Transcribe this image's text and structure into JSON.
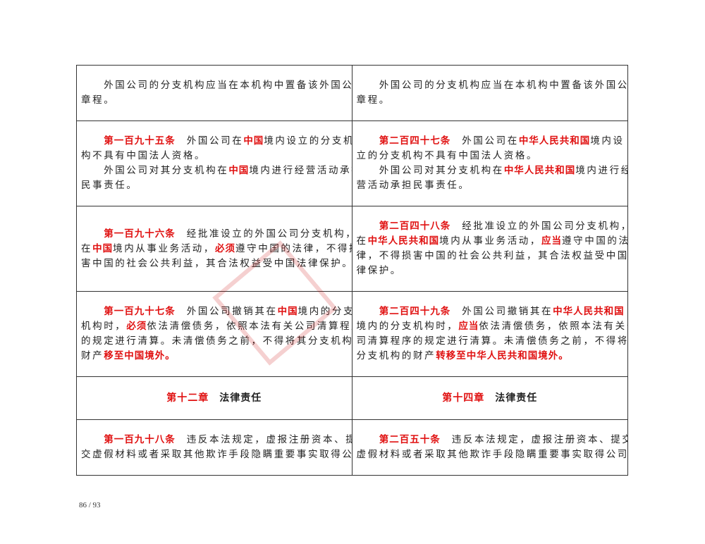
{
  "rows": [
    {
      "h": 78,
      "cells": [
        {
          "lines": [
            [
              {
                "t": "　　外国公司的分支机构应当在本机构中置备该外国公司"
              }
            ],
            [
              {
                "t": "章程。"
              }
            ]
          ]
        },
        {
          "lines": [
            [
              {
                "t": "　　外国公司的分支机构应当在本机构中置备该外国公司"
              }
            ],
            [
              {
                "t": "章程。"
              }
            ]
          ]
        }
      ]
    },
    {
      "h": 120,
      "cells": [
        {
          "lines": [
            [
              {
                "t": "　　"
              },
              {
                "t": "第一百九十五条",
                "r": true
              },
              {
                "t": "　外国公司在"
              },
              {
                "t": "中国",
                "r": true
              },
              {
                "t": "境内设立的分支机"
              }
            ],
            [
              {
                "t": "构不具有中国法人资格。"
              }
            ],
            [
              {
                "t": "　　外国公司对其分支机构在"
              },
              {
                "t": "中国",
                "r": true
              },
              {
                "t": "境内进行经营活动承担"
              }
            ],
            [
              {
                "t": "民事责任。"
              }
            ]
          ]
        },
        {
          "lines": [
            [
              {
                "t": "　　"
              },
              {
                "t": "第二百四十七条",
                "r": true
              },
              {
                "t": "　外国公司在"
              },
              {
                "t": "中华人民共和国",
                "r": true
              },
              {
                "t": "境内设"
              }
            ],
            [
              {
                "t": "立的分支机构不具有中国法人资格。"
              }
            ],
            [
              {
                "t": "　　外国公司对其分支机构在"
              },
              {
                "t": "中华人民共和国",
                "r": true
              },
              {
                "t": "境内进行经"
              }
            ],
            [
              {
                "t": "营活动承担民事责任。"
              }
            ]
          ]
        }
      ]
    },
    {
      "h": 120,
      "cells": [
        {
          "lines": [
            [
              {
                "t": "　　"
              },
              {
                "t": "第一百九十六条",
                "r": true
              },
              {
                "t": "　经批准设立的外国公司分支机构，"
              }
            ],
            [
              {
                "t": "在"
              },
              {
                "t": "中国",
                "r": true
              },
              {
                "t": "境内从事业务活动，"
              },
              {
                "t": "必须",
                "r": true
              },
              {
                "t": "遵守中国的法律，不得损"
              }
            ],
            [
              {
                "t": "害中国的社会公共利益，其合法权益受中国法律保护。"
              }
            ]
          ]
        },
        {
          "lines": [
            [
              {
                "t": "　　"
              },
              {
                "t": "第二百四十八条",
                "r": true
              },
              {
                "t": "　经批准设立的外国公司分支机构，"
              }
            ],
            [
              {
                "t": "在"
              },
              {
                "t": "中华人民共和国",
                "r": true
              },
              {
                "t": "境内从事业务活动，"
              },
              {
                "t": "应当",
                "r": true
              },
              {
                "t": "遵守中国的法"
              }
            ],
            [
              {
                "t": "律，不得损害中国的社会公共利益，其合法权益受中国法"
              }
            ],
            [
              {
                "t": "律保护。"
              }
            ]
          ]
        }
      ]
    },
    {
      "h": 120,
      "cells": [
        {
          "lines": [
            [
              {
                "t": "　　"
              },
              {
                "t": "第一百九十七条",
                "r": true
              },
              {
                "t": "　外国公司撤销其在"
              },
              {
                "t": "中国",
                "r": true
              },
              {
                "t": "境内的分支"
              }
            ],
            [
              {
                "t": "机构时，"
              },
              {
                "t": "必须",
                "r": true
              },
              {
                "t": "依法清偿债务，依照本法有关公司清算程序"
              }
            ],
            [
              {
                "t": "的规定进行清算。未清偿债务之前，不得将其分支机构的"
              }
            ],
            [
              {
                "t": "财产"
              },
              {
                "t": "移至中国境外。",
                "r": true
              }
            ]
          ]
        },
        {
          "lines": [
            [
              {
                "t": "　　"
              },
              {
                "t": "第二百四十九条",
                "r": true
              },
              {
                "t": "　外国公司撤销其在"
              },
              {
                "t": "中华人民共和国",
                "r": true
              }
            ],
            [
              {
                "t": "境内的分支机构时，"
              },
              {
                "t": "应当",
                "r": true
              },
              {
                "t": "依法清偿债务，依照本法有关公"
              }
            ],
            [
              {
                "t": "司清算程序的规定进行清算。未清偿债务之前，不得将其"
              }
            ],
            [
              {
                "t": "分支机构的财产"
              },
              {
                "t": "转移至中华人民共和国境外。",
                "r": true
              }
            ]
          ]
        }
      ]
    },
    {
      "h": 60,
      "heading": true,
      "cells": [
        {
          "lines": [
            [
              {
                "t": "第十二章",
                "r": true
              },
              {
                "t": "　法律责任"
              }
            ]
          ]
        },
        {
          "lines": [
            [
              {
                "t": "第十四章",
                "r": true
              },
              {
                "t": "　法律责任"
              }
            ]
          ]
        }
      ]
    },
    {
      "h": 78,
      "cells": [
        {
          "lines": [
            [
              {
                "t": "　　"
              },
              {
                "t": "第一百九十八条",
                "r": true
              },
              {
                "t": "　违反本法规定，虚报注册资本、提"
              }
            ],
            [
              {
                "t": "交虚假材料或者采取其他欺诈手段隐瞒重要事实取得公司"
              }
            ]
          ]
        },
        {
          "lines": [
            [
              {
                "t": "　　"
              },
              {
                "t": "第二百五十条",
                "r": true
              },
              {
                "t": "　违反本法规定，虚报注册资本、提交"
              }
            ],
            [
              {
                "t": "虚假材料或者采取其他欺诈手段隐瞒重要事实取得公司登"
              }
            ]
          ]
        }
      ]
    }
  ],
  "footer": {
    "page": "86 / 93"
  },
  "colors": {
    "highlight": "#e01010",
    "border": "#333333"
  }
}
